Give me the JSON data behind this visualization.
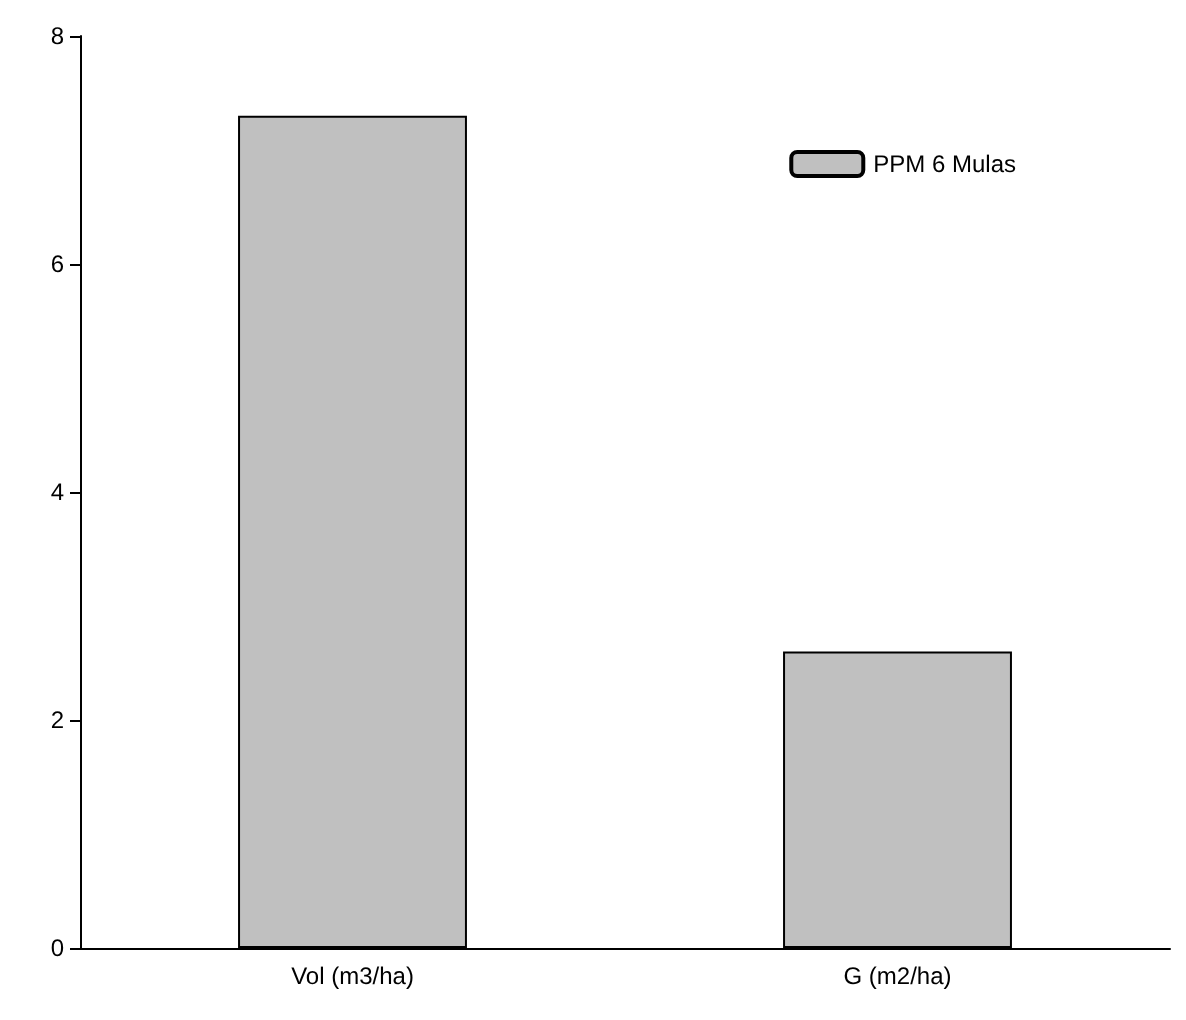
{
  "chart_data": {
    "type": "bar",
    "categories": [
      "Vol (m3/ha)",
      "G (m2/ha)"
    ],
    "series": [
      {
        "name": "PPM 6 Mulas",
        "color": "#c0c0c0",
        "values": [
          7.3,
          2.6
        ]
      }
    ],
    "ylim": [
      0,
      8
    ],
    "yticks": [
      0,
      2,
      4,
      6,
      8
    ],
    "grid": false,
    "legend": "top right"
  }
}
